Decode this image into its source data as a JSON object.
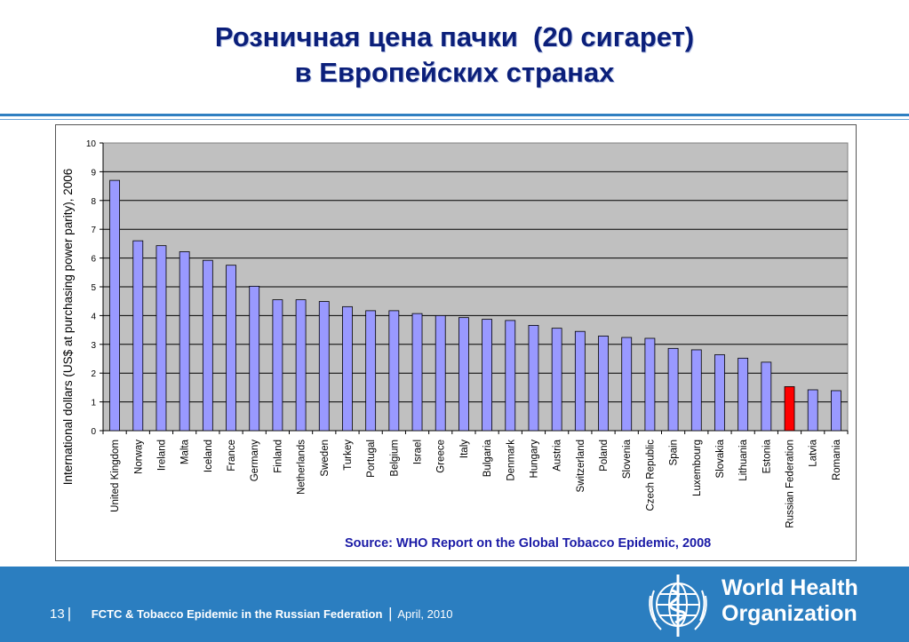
{
  "slide": {
    "title_line1": "Розничная цена пачки  (20 сигарет)",
    "title_line2": "в Европейских странах"
  },
  "source": "Source: WHO Report on the Global Tobacco Epidemic, 2008",
  "footer": {
    "page_number": "13",
    "separator": "|",
    "text": "FCTC &  Tobacco Epidemic in the Russian Federation",
    "date": "April, 2010",
    "org_line1": "World Health",
    "org_line2": "Organization"
  },
  "colors": {
    "bar": "#9999ff",
    "highlight_bar": "#ff0000",
    "plot_background": "#c0c0c0",
    "title": "#0b1f7a",
    "footer_band": "#2b7ec0",
    "source_text": "#1a1aa6"
  },
  "chart_data": {
    "type": "bar",
    "title": "",
    "xlabel": "",
    "ylabel": "International dollars  (US$ at purchasing power parity), 2006",
    "ylim": [
      0,
      10
    ],
    "yticks": [
      0,
      1,
      2,
      3,
      4,
      5,
      6,
      7,
      8,
      9,
      10
    ],
    "grid": true,
    "categories": [
      "United Kingdom",
      "Norway",
      "Ireland",
      "Malta",
      "Iceland",
      "France",
      "Germany",
      "Finland",
      "Netherlands",
      "Sweden",
      "Turkey",
      "Portugal",
      "Belgium",
      "Israel",
      "Greece",
      "Italy",
      "Bulgaria",
      "Denmark",
      "Hungary",
      "Austria",
      "Switzerland",
      "Poland",
      "Slovenia",
      "Czech Republic",
      "Spain",
      "Luxembourg",
      "Slovakia",
      "Lithuania",
      "Estonia",
      "Russian Federation",
      "Latvia",
      "Romania"
    ],
    "values": [
      8.7,
      6.6,
      6.43,
      6.22,
      5.92,
      5.75,
      5.02,
      4.55,
      4.55,
      4.49,
      4.31,
      4.17,
      4.17,
      4.07,
      4.0,
      3.93,
      3.87,
      3.83,
      3.66,
      3.56,
      3.45,
      3.29,
      3.24,
      3.21,
      2.86,
      2.81,
      2.64,
      2.52,
      2.38,
      1.53,
      1.42,
      1.39
    ],
    "highlight": "Russian Federation"
  }
}
